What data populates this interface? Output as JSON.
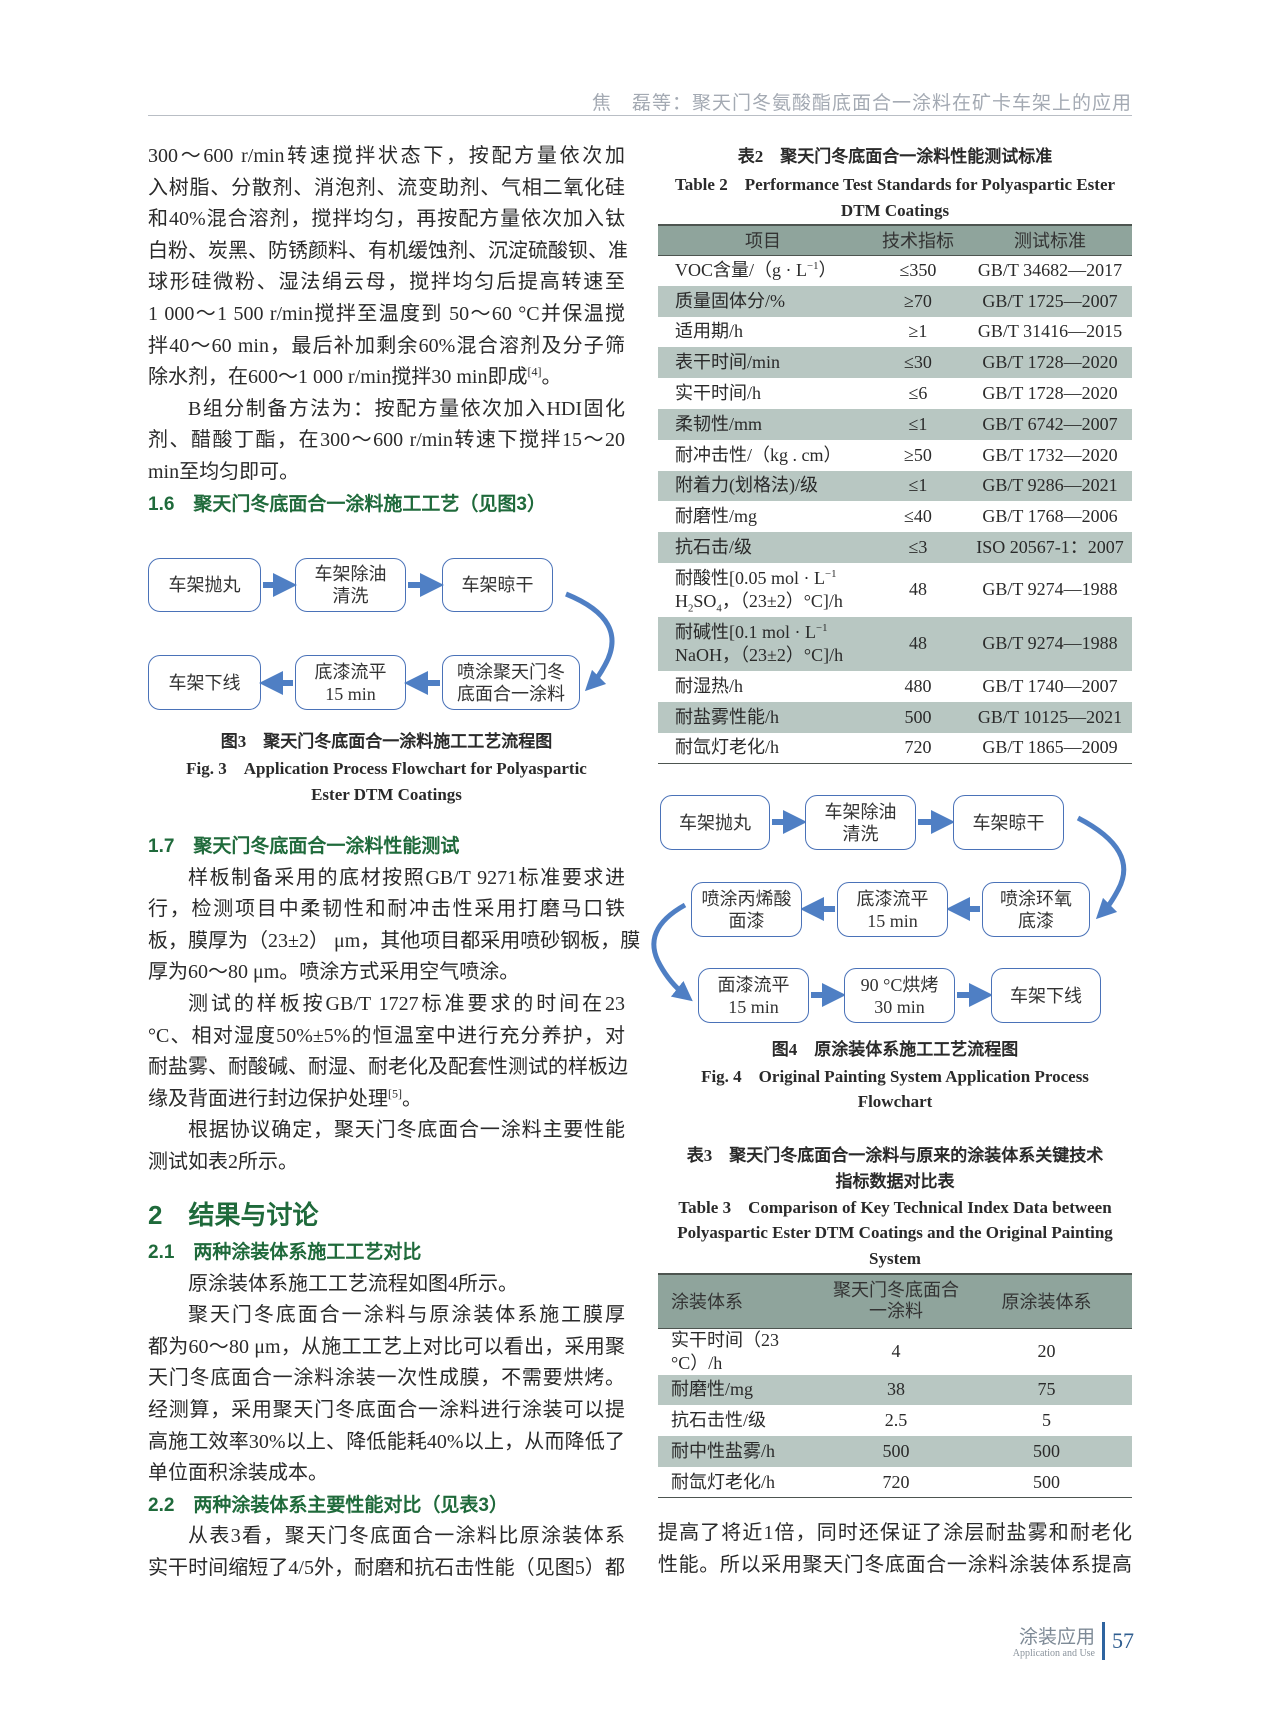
{
  "running_header": "焦　磊等：聚天门冬氨酸酯底面合一涂料在矿卡车架上的应用",
  "left_column": {
    "block1": [
      {
        "type": "p",
        "lines": [
          "300～600 r/min转速搅拌状态下，按配方量依次加",
          "入树脂、分散剂、消泡剂、流变助剂、气相二氧化硅",
          "和40%混合溶剂，搅拌均匀，再按配方量依次加入钛",
          "白粉、炭黑、防锈颜料、有机缓蚀剂、沉淀硫酸钡、准",
          "球形硅微粉、湿法绢云母，搅拌均匀后提高转速至",
          "1 000～1 500 r/min搅拌至温度到 50～60 °C并保温搅",
          "拌40～60 min，最后补加剩余60%混合溶剂及分子筛",
          [
            {
              "t": "除水剂，在600～1 000 r/min搅拌30 min即成"
            },
            {
              "sup": "[4]"
            },
            {
              "t": "。"
            }
          ]
        ]
      },
      {
        "type": "p",
        "indent": true,
        "lines": [
          "B组分制备方法为：按配方量依次加入HDI固化",
          "剂、醋酸丁酯，在300～600 r/min转速下搅拌15～20",
          "min至均匀即可。"
        ]
      },
      {
        "type": "h2",
        "text": "1.6　聚天门冬底面合一涂料施工工艺（见图3）"
      }
    ],
    "block2": [
      {
        "type": "h2",
        "text": "1.7　聚天门冬底面合一涂料性能测试"
      },
      {
        "type": "p",
        "indent": true,
        "lines": [
          "样板制备采用的底材按照GB/T 9271标准要求进",
          "行，检测项目中柔韧性和耐冲击性采用打磨马口铁",
          "板，膜厚为（23±2） μm，其他项目都采用喷砂钢板，膜",
          "厚为60～80 μm。喷涂方式采用空气喷涂。"
        ]
      },
      {
        "type": "p",
        "indent": true,
        "lines": [
          "测试的样板按GB/T 1727标准要求的时间在23",
          "°C、相对湿度50%±5%的恒温室中进行充分养护，对",
          "耐盐雾、耐酸碱、耐湿、耐老化及配套性测试的样板边",
          [
            {
              "t": "缘及背面进行封边保护处理"
            },
            {
              "sup": "[5]"
            },
            {
              "t": "。"
            }
          ]
        ]
      },
      {
        "type": "p",
        "indent": true,
        "lines": [
          "根据协议确定，聚天门冬底面合一涂料主要性能",
          "测试如表2所示。"
        ]
      }
    ],
    "section2_heading": "2　结果与讨论",
    "block3": [
      {
        "type": "h2",
        "text": "2.1　两种涂装体系施工工艺对比"
      },
      {
        "type": "p",
        "indent": true,
        "lines": [
          "原涂装体系施工工艺流程如图4所示。"
        ]
      },
      {
        "type": "p",
        "indent": true,
        "lines": [
          "聚天门冬底面合一涂料与原涂装体系施工膜厚",
          "都为60～80 μm，从施工工艺上对比可以看出，采用聚",
          "天门冬底面合一涂料涂装一次性成膜，不需要烘烤。",
          "经测算，采用聚天门冬底面合一涂料进行涂装可以提",
          "高施工效率30%以上、降低能耗40%以上，从而降低了",
          "单位面积涂装成本。"
        ]
      },
      {
        "type": "h2",
        "text": "2.2　两种涂装体系主要性能对比（见表3）"
      },
      {
        "type": "p",
        "indent": true,
        "continues": true,
        "lines": [
          "从表3看，聚天门冬底面合一涂料比原涂装体系",
          "实干时间缩短了4/5外，耐磨和抗石击性能（见图5）都"
        ]
      }
    ]
  },
  "figure3": {
    "steps": [
      {
        "lines": [
          "车架抛丸"
        ]
      },
      {
        "lines": [
          "车架除油",
          "清洗"
        ]
      },
      {
        "lines": [
          "车架晾干"
        ]
      },
      {
        "lines": [
          "喷涂聚天门冬",
          "底面合一涂料"
        ]
      },
      {
        "lines": [
          "底漆流平",
          "15 min"
        ]
      },
      {
        "lines": [
          "车架下线"
        ]
      }
    ],
    "caption_cn": "图3　聚天门冬底面合一涂料施工工艺流程图",
    "caption_en": [
      "Fig. 3　Application Process Flowchart for Polyaspartic",
      "Ester DTM Coatings"
    ]
  },
  "table2": {
    "title_cn": "表2　聚天门冬底面合一涂料性能测试标准",
    "title_en": [
      "Table 2　Performance Test Standards for Polyaspartic Ester",
      "DTM Coatings"
    ],
    "headers": [
      "项目",
      "技术指标",
      "测试标准"
    ],
    "rows": [
      {
        "item": [
          {
            "t": "VOC含量/（g · L"
          },
          {
            "sup": "−1"
          },
          {
            "t": "）"
          }
        ],
        "spec": "≤350",
        "std": "GB/T 34682—2017"
      },
      {
        "item": [
          {
            "t": "质量固体分/%"
          }
        ],
        "spec": "≥70",
        "std": "GB/T 1725—2007"
      },
      {
        "item": [
          {
            "t": "适用期/h"
          }
        ],
        "spec": "≥1",
        "std": "GB/T 31416—2015"
      },
      {
        "item": [
          {
            "t": "表干时间/min"
          }
        ],
        "spec": "≤30",
        "std": "GB/T 1728—2020"
      },
      {
        "item": [
          {
            "t": "实干时间/h"
          }
        ],
        "spec": "≤6",
        "std": "GB/T 1728—2020"
      },
      {
        "item": [
          {
            "t": "柔韧性/mm"
          }
        ],
        "spec": "≤1",
        "std": "GB/T 6742—2007"
      },
      {
        "item": [
          {
            "t": "耐冲击性/（kg . cm）"
          }
        ],
        "spec": "≥50",
        "std": "GB/T 1732—2020"
      },
      {
        "item": [
          {
            "t": "附着力(划格法)/级"
          }
        ],
        "spec": "≤1",
        "std": "GB/T 9286—2021"
      },
      {
        "item": [
          {
            "t": "耐磨性/mg"
          }
        ],
        "spec": "≤40",
        "std": "GB/T 1768—2006"
      },
      {
        "item": [
          {
            "t": "抗石击/级"
          }
        ],
        "spec": "≤3",
        "std": "ISO 20567-1：2007"
      },
      {
        "item": [
          {
            "t": "耐酸性[0.05 mol · L"
          },
          {
            "sup": "−1"
          },
          {
            "br": true
          },
          {
            "t": "H"
          },
          {
            "sub": "2"
          },
          {
            "t": "SO"
          },
          {
            "sub": "4"
          },
          {
            "t": "，（23±2）°C]/h"
          }
        ],
        "spec": "48",
        "std": "GB/T 9274—1988"
      },
      {
        "item": [
          {
            "t": "耐碱性[0.1 mol · L"
          },
          {
            "sup": "−1"
          },
          {
            "br": true
          },
          {
            "t": "NaOH，（23±2）°C]/h"
          }
        ],
        "spec": "48",
        "std": "GB/T 9274—1988"
      },
      {
        "item": [
          {
            "t": "耐湿热/h"
          }
        ],
        "spec": "480",
        "std": "GB/T 1740—2007"
      },
      {
        "item": [
          {
            "t": "耐盐雾性能/h"
          }
        ],
        "spec": "500",
        "std": "GB/T 10125—2021"
      },
      {
        "item": [
          {
            "t": "耐氙灯老化/h"
          }
        ],
        "spec": "720",
        "std": "GB/T 1865—2009"
      }
    ]
  },
  "figure4": {
    "steps": [
      {
        "lines": [
          "车架抛丸"
        ]
      },
      {
        "lines": [
          "车架除油",
          "清洗"
        ]
      },
      {
        "lines": [
          "车架晾干"
        ]
      },
      {
        "lines": [
          "喷涂环氧",
          "底漆"
        ]
      },
      {
        "lines": [
          "底漆流平",
          "15 min"
        ]
      },
      {
        "lines": [
          "喷涂丙烯酸",
          "面漆"
        ]
      },
      {
        "lines": [
          "面漆流平",
          "15 min"
        ]
      },
      {
        "lines": [
          "90 °C烘烤",
          "30 min"
        ]
      },
      {
        "lines": [
          "车架下线"
        ]
      }
    ],
    "caption_cn": "图4　原涂装体系施工工艺流程图",
    "caption_en": [
      "Fig. 4　Original Painting System Application Process",
      "Flowchart"
    ]
  },
  "table3": {
    "title_cn": [
      "表3　聚天门冬底面合一涂料与原来的涂装体系关键技术",
      "指标数据对比表"
    ],
    "title_en": [
      "Table 3　Comparison of Key Technical Index Data between",
      "Polyaspartic Ester DTM Coatings and the Original Painting",
      "System"
    ],
    "headers": [
      "涂装体系",
      "聚天门冬底面合一涂料",
      "原涂装体系"
    ],
    "rows": [
      {
        "item": "实干时间（23 °C）/h",
        "a": "4",
        "b": "20"
      },
      {
        "item": "耐磨性/mg",
        "a": "38",
        "b": "75"
      },
      {
        "item": "抗石击性/级",
        "a": "2.5",
        "b": "5"
      },
      {
        "item": "耐中性盐雾/h",
        "a": "500",
        "b": "500"
      },
      {
        "item": "耐氙灯老化/h",
        "a": "720",
        "b": "500"
      }
    ]
  },
  "right_column_text": [
    "提高了将近1倍，同时还保证了涂层耐盐雾和耐老化",
    "性能。所以采用聚天门冬底面合一涂料涂装体系提高"
  ],
  "footer": {
    "journal_cn": "涂装应用",
    "journal_en": "Application and Use",
    "page_number": "57"
  },
  "colors": {
    "heading_green": "#1f6a3b",
    "table_header": "#8fa49c",
    "table_alt_row": "#b8c7c2",
    "flow_blue": "#4a72b8"
  }
}
